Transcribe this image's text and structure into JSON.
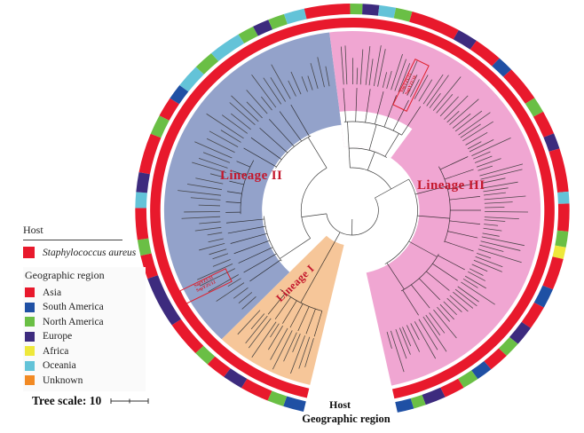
{
  "legend_host": {
    "title": "Host",
    "items": [
      {
        "label": "Staphylococcus aureus",
        "color": "#e8192c"
      }
    ]
  },
  "legend_region": {
    "title": "Geographic region",
    "items": [
      {
        "label": "Asia",
        "color": "#e8192c"
      },
      {
        "label": "South America",
        "color": "#1f50a4"
      },
      {
        "label": "North America",
        "color": "#6abf45"
      },
      {
        "label": "Europe",
        "color": "#3d2b7e"
      },
      {
        "label": "Africa",
        "color": "#eee83b"
      },
      {
        "label": "Oceania",
        "color": "#63c3d8"
      },
      {
        "label": "Unknown",
        "color": "#f28a24"
      }
    ]
  },
  "tree_scale": {
    "label": "Tree scale: 10"
  },
  "ring_labels": {
    "host": "Host",
    "region": "Geographic region"
  },
  "lineages": [
    {
      "name": "Lineage I",
      "color": "#f6c699",
      "start": 193,
      "end": 224,
      "inner_r": 40,
      "leaf_count": 14
    },
    {
      "name": "Lineage II",
      "color": "#93a2ca",
      "start": 224,
      "end": 353,
      "inner_r": 97,
      "leaf_count": 50
    },
    {
      "name": "Lineage III",
      "color": "#f0a6d2",
      "start": 353,
      "end": 528,
      "inner_r": 72,
      "leaf_count": 90
    }
  ],
  "label_color": "#c4182d",
  "host_ring_color": "#e8192c",
  "highlights": [
    {
      "line1": "SapYZU15",
      "line2": "SapYZU16"
    },
    {
      "line1": "SapYZU11",
      "line2": "SapYZU12"
    }
  ],
  "outer_ring": {
    "colors": {
      "as": "#e8192c",
      "sa": "#1f50a4",
      "na": "#6abf45",
      "eu": "#3d2b7e",
      "af": "#eee83b",
      "oc": "#63c3d8",
      "un": "#f28a24"
    },
    "segments": [
      [
        "sa",
        5
      ],
      [
        "na",
        4
      ],
      [
        "as",
        7
      ],
      [
        "eu",
        5
      ],
      [
        "as",
        5
      ],
      [
        "na",
        4
      ],
      [
        "as",
        9
      ],
      [
        "eu",
        13
      ],
      [
        "as",
        6
      ],
      [
        "na",
        4
      ],
      [
        "as",
        8
      ],
      [
        "oc",
        4
      ],
      [
        "eu",
        5
      ],
      [
        "as",
        10
      ],
      [
        "na",
        5
      ],
      [
        "as",
        5
      ],
      [
        "sa",
        4
      ],
      [
        "oc",
        6
      ],
      [
        "na",
        5
      ],
      [
        "oc",
        8
      ],
      [
        "na",
        4
      ],
      [
        "eu",
        4
      ],
      [
        "na",
        4
      ],
      [
        "oc",
        5
      ],
      [
        "as",
        11
      ],
      [
        "na",
        3
      ],
      [
        "eu",
        4
      ],
      [
        "oc",
        4
      ],
      [
        "na",
        4
      ],
      [
        "as",
        12
      ],
      [
        "eu",
        5
      ],
      [
        "as",
        7
      ],
      [
        "sa",
        4
      ],
      [
        "as",
        9
      ],
      [
        "na",
        4
      ],
      [
        "as",
        6
      ],
      [
        "eu",
        4
      ],
      [
        "as",
        11
      ],
      [
        "oc",
        3
      ],
      [
        "as",
        7
      ],
      [
        "na",
        4
      ],
      [
        "af",
        3
      ],
      [
        "as",
        8
      ],
      [
        "sa",
        5
      ],
      [
        "as",
        6
      ],
      [
        "eu",
        5
      ],
      [
        "na",
        4
      ],
      [
        "as",
        5
      ],
      [
        "sa",
        4
      ],
      [
        "na",
        4
      ],
      [
        "as",
        5
      ],
      [
        "eu",
        5
      ],
      [
        "na",
        3
      ],
      [
        "sa",
        4
      ]
    ]
  }
}
